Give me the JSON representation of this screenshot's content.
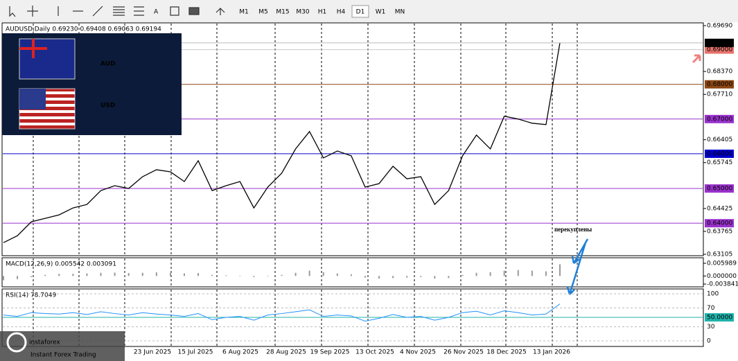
{
  "toolbar": {
    "timeframes": [
      "M1",
      "M5",
      "M15",
      "M30",
      "H1",
      "H4",
      "D1",
      "W1",
      "MN"
    ],
    "active": "D1"
  },
  "price_chart": {
    "header": "AUDUSD,Daily  0.69230 0.69408 0.69063 0.69194",
    "ylim": [
      0.63105,
      0.6969
    ],
    "closes": [
      0.6344,
      0.6364,
      0.6404,
      0.6414,
      0.6424,
      0.6444,
      0.6454,
      0.6494,
      0.6508,
      0.65,
      0.6534,
      0.6554,
      0.6548,
      0.652,
      0.658,
      0.6494,
      0.6508,
      0.652,
      0.6444,
      0.6504,
      0.6544,
      0.6614,
      0.6664,
      0.6588,
      0.6608,
      0.6594,
      0.6504,
      0.6514,
      0.6564,
      0.6528,
      0.6534,
      0.6454,
      0.6494,
      0.6594,
      0.6654,
      0.6614,
      0.6708,
      0.67,
      0.6688,
      0.6684,
      0.69194
    ],
    "price_ticks": [
      {
        "value": 0.6969,
        "label": "0.69690"
      },
      {
        "value": 0.6837,
        "label": "0.68370"
      },
      {
        "value": 0.6771,
        "label": "0.67710"
      },
      {
        "value": 0.66405,
        "label": "0.66405"
      },
      {
        "value": 0.65745,
        "label": "0.65745"
      },
      {
        "value": 0.64425,
        "label": "0.64425"
      },
      {
        "value": 0.63765,
        "label": "0.63765"
      },
      {
        "value": 0.63105,
        "label": "0.63105"
      }
    ],
    "current": {
      "value": 0.69194,
      "label": "0.69194"
    },
    "levels": [
      {
        "value": 0.69,
        "label": "0.69000",
        "color": "#c8c8c8",
        "label_color": "#e8736b"
      },
      {
        "value": 0.68,
        "label": "0.68000",
        "color": "#8b4513",
        "label_color": "#8b4513"
      },
      {
        "value": 0.67,
        "label": "0.67000",
        "color": "#9932cc",
        "label_color": "#9932cc"
      },
      {
        "value": 0.66,
        "label": "0.66000",
        "color": "#0000cd",
        "label_color": "#0000cd"
      },
      {
        "value": 0.65,
        "label": "0.65000",
        "color": "#9932cc",
        "label_color": "#9932cc"
      },
      {
        "value": 0.64,
        "label": "0.64000",
        "color": "#9932cc",
        "label_color": "#9932cc"
      }
    ],
    "annotation": "перекуплены"
  },
  "macd": {
    "label": "MACD(12,26,9) 0.005542 0.003091",
    "ylim": [
      -0.003841,
      0.005989
    ],
    "ticks": [
      {
        "value": 0.005989,
        "label": "0.005989"
      },
      {
        "value": 0,
        "label": "0.000000"
      },
      {
        "value": -0.003841,
        "label": "-0.003841"
      }
    ],
    "values": [
      -0.002,
      -0.0015,
      -0.0005,
      0.0005,
      0.001,
      0.001,
      0.0012,
      0.0015,
      0.0016,
      0.0014,
      0.0015,
      0.0017,
      0.0015,
      0.0012,
      0.0014,
      0.0005,
      0.0003,
      0.0002,
      -0.0005,
      -0.0002,
      0.0005,
      0.0015,
      0.0025,
      0.0018,
      0.0012,
      0.0008,
      -0.0008,
      -0.0012,
      -0.001,
      -0.0008,
      -0.0005,
      -0.0012,
      -0.001,
      0.0005,
      0.0015,
      0.0018,
      0.0025,
      0.0028,
      0.0025,
      0.0022,
      0.005542
    ]
  },
  "rsi": {
    "label": "RSI(14) 78.7049",
    "ylim": [
      0,
      100
    ],
    "ticks": [
      100,
      70,
      30,
      0
    ],
    "level": {
      "value": 50,
      "label": "50.0000"
    },
    "values": [
      55,
      52,
      60,
      58,
      57,
      60,
      56,
      62,
      58,
      55,
      60,
      57,
      55,
      52,
      58,
      45,
      50,
      52,
      44,
      55,
      58,
      62,
      66,
      52,
      55,
      53,
      42,
      48,
      56,
      50,
      52,
      44,
      50,
      60,
      63,
      55,
      64,
      60,
      55,
      57,
      78.7049
    ]
  },
  "dates": [
    "23 Jun 2025",
    "15 Jul 2025",
    "6 Aug 2025",
    "28 Aug 2025",
    "19 Sep 2025",
    "13 Oct 2025",
    "4 Nov 2025",
    "26 Nov 2025",
    "18 Dec 2025",
    "13 Jan 2026"
  ],
  "inset": {
    "top": "AUD",
    "bottom": "USD"
  },
  "logo": {
    "name": "instaforex",
    "tagline": "Instant Forex Trading"
  }
}
